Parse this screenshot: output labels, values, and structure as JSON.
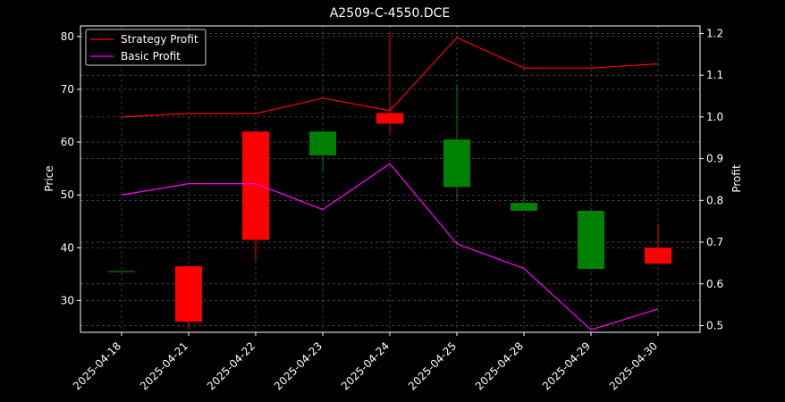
{
  "chart_data": {
    "type": "candlestick",
    "title": "A2509-C-4550.DCE",
    "xlabel": "",
    "ylabel": "Price",
    "ylabel_right": "Profit",
    "categories": [
      "2025-04-18",
      "2025-04-21",
      "2025-04-22",
      "2025-04-23",
      "2025-04-24",
      "2025-04-25",
      "2025-04-28",
      "2025-04-29",
      "2025-04-30"
    ],
    "ylim": [
      24,
      82
    ],
    "yticks": [
      30,
      40,
      50,
      60,
      70,
      80
    ],
    "ylim_right": [
      0.484,
      1.218
    ],
    "yticks_right": [
      0.5,
      0.6,
      0.7,
      0.8,
      0.9,
      1.0,
      1.1,
      1.2
    ],
    "grid": true,
    "legend_position": "top-left",
    "candles": [
      {
        "date": "2025-04-18",
        "open": 35.5,
        "close": 35.5,
        "high": 35.5,
        "low": 35.5
      },
      {
        "date": "2025-04-21",
        "open": 36.5,
        "close": 26.0,
        "high": 36.5,
        "low": 24.5
      },
      {
        "date": "2025-04-22",
        "open": 62.0,
        "close": 41.5,
        "high": 62.0,
        "low": 37.5
      },
      {
        "date": "2025-04-23",
        "open": 57.5,
        "close": 62.0,
        "high": 62.0,
        "low": 54.0
      },
      {
        "date": "2025-04-24",
        "open": 65.5,
        "close": 63.5,
        "high": 81.0,
        "low": 61.5
      },
      {
        "date": "2025-04-25",
        "open": 51.5,
        "close": 60.5,
        "high": 71.0,
        "low": 49.0
      },
      {
        "date": "2025-04-28",
        "open": 47.0,
        "close": 48.5,
        "high": 50.0,
        "low": 47.0
      },
      {
        "date": "2025-04-29",
        "open": 36.0,
        "close": 47.0,
        "high": 47.0,
        "low": 36.0
      },
      {
        "date": "2025-04-30",
        "open": 40.0,
        "close": 37.0,
        "high": 44.5,
        "low": 37.0
      }
    ],
    "series": [
      {
        "name": "Strategy Profit",
        "color": "#ff0000",
        "values": [
          1.0,
          1.008,
          1.008,
          1.045,
          1.015,
          1.19,
          1.117,
          1.117,
          1.127
        ]
      },
      {
        "name": "Basic Profit",
        "color": "#ff00ff",
        "values": [
          0.813,
          0.84,
          0.84,
          0.778,
          0.888,
          0.696,
          0.637,
          0.49,
          0.54
        ]
      }
    ],
    "colors": {
      "up": "#008000",
      "down": "#ff0000",
      "background": "#000000",
      "axes": "#ffffff",
      "grid": "#808080"
    }
  }
}
